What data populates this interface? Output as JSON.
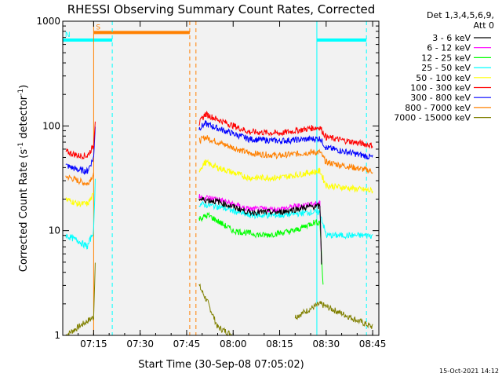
{
  "chart_data": {
    "type": "line",
    "title": "RHESSI Observing Summary Count Rates, Corrected",
    "xlabel": "Start Time (30-Sep-08 07:05:02)",
    "ylabel_main": "Corrected Count Rate (s",
    "ylabel_sup1": "-1",
    "ylabel_mid": " detector",
    "ylabel_sup2": "-1",
    "ylabel_end": ")",
    "ylabel": "Corrected Count Rate (s-1 detector-1)",
    "yscale": "log",
    "ylim": [
      1,
      1000
    ],
    "xlim": [
      "07:05:02",
      "08:47:00"
    ],
    "x_ticks": [
      "07:15",
      "07:30",
      "07:45",
      "08:00",
      "08:15",
      "08:30",
      "08:45"
    ],
    "y_ticks": [
      "1",
      "10",
      "100",
      "1000"
    ],
    "legend_header": [
      "Det 1,3,4,5,6,9,",
      "Att 0"
    ],
    "legend_placement": "right",
    "timestamp": "15-Oct-2021 14:12",
    "background": "#f2f2f2",
    "annotations": [
      {
        "label": "S",
        "color": "#ff8000"
      },
      {
        "label": "N",
        "color": "#00ffff"
      }
    ],
    "flags": [
      {
        "name": "SAA",
        "label": "S",
        "color": "#ff8000",
        "level": 780,
        "start": "07:15",
        "end": "07:46"
      },
      {
        "name": "Night",
        "label": "N",
        "color": "#00ffff",
        "level": 660,
        "start": "07:05",
        "end": "07:21"
      },
      {
        "name": "Night",
        "label": "",
        "color": "#00ffff",
        "level": 660,
        "start": "08:27",
        "end": "08:43"
      }
    ],
    "markers": [
      {
        "time": "07:15",
        "color": "#ff8000",
        "style": "solid"
      },
      {
        "time": "07:21",
        "color": "#00ffff",
        "style": "dashed"
      },
      {
        "time": "07:46",
        "color": "#ff8000",
        "style": "dashed"
      },
      {
        "time": "07:48",
        "color": "#ff8000",
        "style": "dashed"
      },
      {
        "time": "08:27",
        "color": "#00ffff",
        "style": "solid"
      },
      {
        "time": "08:43",
        "color": "#00ffff",
        "style": "dashed"
      }
    ],
    "series": [
      {
        "name": "3 - 6 keV",
        "color": "#000000",
        "segments": [
          [
            [
              "07:49",
              20
            ],
            [
              "07:55",
              19
            ],
            [
              "08:05",
              15
            ],
            [
              "08:15",
              15
            ],
            [
              "08:25",
              17
            ],
            [
              "08:28",
              17
            ],
            [
              "08:28.5",
              5
            ]
          ]
        ]
      },
      {
        "name": "6 - 12 keV",
        "color": "#ff00ff",
        "segments": [
          [
            [
              "07:49",
              21
            ],
            [
              "07:55",
              20
            ],
            [
              "08:05",
              16
            ],
            [
              "08:15",
              16
            ],
            [
              "08:25",
              18
            ],
            [
              "08:28",
              18
            ],
            [
              "08:28.5",
              5
            ]
          ]
        ]
      },
      {
        "name": "12 - 25 keV",
        "color": "#00ff00",
        "segments": [
          [
            [
              "07:49",
              13
            ],
            [
              "07:52",
              14
            ],
            [
              "08:00",
              10
            ],
            [
              "08:10",
              9
            ],
            [
              "08:20",
              10
            ],
            [
              "08:26",
              12
            ],
            [
              "08:28",
              12
            ],
            [
              "08:29",
              3
            ]
          ]
        ]
      },
      {
        "name": "25 - 50 keV",
        "color": "#00ffff",
        "segments": [
          [
            [
              "07:06",
              9
            ],
            [
              "07:10",
              8
            ],
            [
              "07:13",
              7
            ],
            [
              "07:15",
              10
            ],
            [
              "07:15.5",
              30
            ]
          ],
          [
            [
              "07:49",
              18
            ],
            [
              "07:55",
              17
            ],
            [
              "08:05",
              14
            ],
            [
              "08:15",
              14
            ],
            [
              "08:25",
              15
            ],
            [
              "08:28",
              15
            ],
            [
              "08:30",
              9
            ],
            [
              "08:45",
              9
            ]
          ]
        ]
      },
      {
        "name": "50 - 100 keV",
        "color": "#ffff00",
        "segments": [
          [
            [
              "07:06",
              20
            ],
            [
              "07:10",
              18
            ],
            [
              "07:13",
              18
            ],
            [
              "07:15",
              22
            ]
          ],
          [
            [
              "07:49",
              38
            ],
            [
              "07:51",
              45
            ],
            [
              "07:55",
              40
            ],
            [
              "08:05",
              32
            ],
            [
              "08:15",
              32
            ],
            [
              "08:25",
              36
            ],
            [
              "08:28",
              37
            ],
            [
              "08:30",
              27
            ],
            [
              "08:45",
              24
            ]
          ]
        ]
      },
      {
        "name": "100 - 300 keV",
        "color": "#ff0000",
        "segments": [
          [
            [
              "07:06",
              57
            ],
            [
              "07:10",
              52
            ],
            [
              "07:13",
              52
            ],
            [
              "07:15",
              65
            ],
            [
              "07:15.5",
              115
            ]
          ],
          [
            [
              "07:49",
              105
            ],
            [
              "07:51",
              130
            ],
            [
              "07:55",
              115
            ],
            [
              "08:05",
              88
            ],
            [
              "08:15",
              85
            ],
            [
              "08:25",
              95
            ],
            [
              "08:28",
              97
            ],
            [
              "08:30",
              78
            ],
            [
              "08:45",
              65
            ]
          ]
        ]
      },
      {
        "name": "300 - 800 keV",
        "color": "#0000ff",
        "segments": [
          [
            [
              "07:06",
              42
            ],
            [
              "07:10",
              38
            ],
            [
              "07:13",
              37
            ],
            [
              "07:15",
              50
            ],
            [
              "07:15.5",
              100
            ]
          ],
          [
            [
              "07:49",
              95
            ],
            [
              "07:51",
              105
            ],
            [
              "07:55",
              95
            ],
            [
              "08:05",
              75
            ],
            [
              "08:15",
              72
            ],
            [
              "08:25",
              75
            ],
            [
              "08:28",
              76
            ],
            [
              "08:30",
              62
            ],
            [
              "08:45",
              50
            ]
          ]
        ]
      },
      {
        "name": "800 - 7000 keV",
        "color": "#ff8000",
        "segments": [
          [
            [
              "07:06",
              33
            ],
            [
              "07:10",
              30
            ],
            [
              "07:13",
              28
            ],
            [
              "07:15",
              35
            ]
          ],
          [
            [
              "07:49",
              72
            ],
            [
              "07:51",
              78
            ],
            [
              "07:55",
              70
            ],
            [
              "08:05",
              55
            ],
            [
              "08:15",
              52
            ],
            [
              "08:25",
              56
            ],
            [
              "08:28",
              56
            ],
            [
              "08:30",
              45
            ],
            [
              "08:45",
              37
            ]
          ]
        ]
      },
      {
        "name": "7000 - 15000 keV",
        "color": "#808000",
        "segments": [
          [
            [
              "07:06",
              1
            ],
            [
              "07:15",
              1.5
            ],
            [
              "07:15.5",
              5
            ]
          ],
          [
            [
              "07:49",
              3
            ],
            [
              "07:52",
              2
            ],
            [
              "07:55",
              1.2
            ],
            [
              "08:00",
              1
            ]
          ],
          [
            [
              "08:20",
              1.5
            ],
            [
              "08:28",
              2
            ],
            [
              "08:45",
              1.2
            ]
          ]
        ]
      }
    ]
  }
}
